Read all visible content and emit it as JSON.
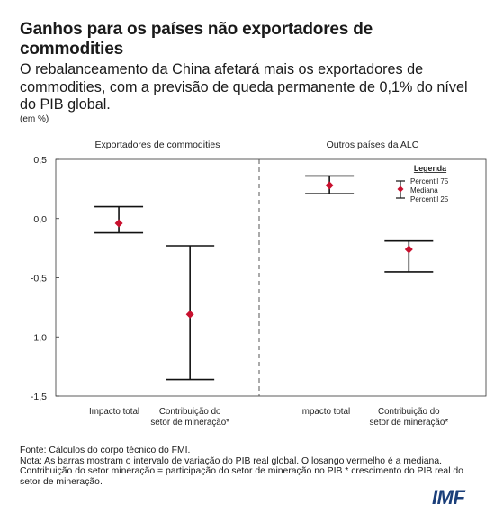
{
  "title": "Ganhos para os países não exportadores de commodities",
  "subtitle": "O rebalanceamento da China afetará mais os exportadores de commodities, com a previsão de queda permanente de 0,1% do nível do PIB global.",
  "unit": "(em %)",
  "footer": {
    "source": "Fonte: Cálculos do corpo técnico do FMI.",
    "note": "Nota: As barras mostram o intervalo de variação do PIB real global. O losango vermelho é a mediana. Contribuição do setor mineração = participação do setor de mineração no PIB * crescimento do PIB real do setor de mineração."
  },
  "logo": "IMF",
  "chart_data": {
    "type": "error-bar",
    "ylim": [
      -1.5,
      0.5
    ],
    "yticks": [
      "0,5",
      "0,0",
      "-0,5",
      "-1,0",
      "-1,5"
    ],
    "ytick_values": [
      0.5,
      0.0,
      -0.5,
      -1.0,
      -1.5
    ],
    "panels": [
      {
        "name": "Exportadores de commodities",
        "categories": [
          {
            "label": [
              "Impacto total"
            ],
            "p75": 0.1,
            "median": -0.04,
            "p25": -0.12
          },
          {
            "label": [
              "Contribuição do",
              "setor de mineração*"
            ],
            "p75": -0.23,
            "median": -0.81,
            "p25": -1.36
          }
        ]
      },
      {
        "name": "Outros países da ALC",
        "categories": [
          {
            "label": [
              "Impacto total"
            ],
            "p75": 0.36,
            "median": 0.28,
            "p25": 0.21
          },
          {
            "label": [
              "Contribuição do",
              "setor de mineração*"
            ],
            "p75": -0.19,
            "median": -0.26,
            "p25": -0.45
          }
        ]
      }
    ],
    "legend": {
      "title": "Legenda",
      "items": [
        "Percentil 75",
        "Mediana",
        "Percentil 25"
      ],
      "position": "top-right"
    },
    "colors": {
      "median": "#c8102e",
      "bars": "#111111",
      "divider": "#555555"
    }
  }
}
